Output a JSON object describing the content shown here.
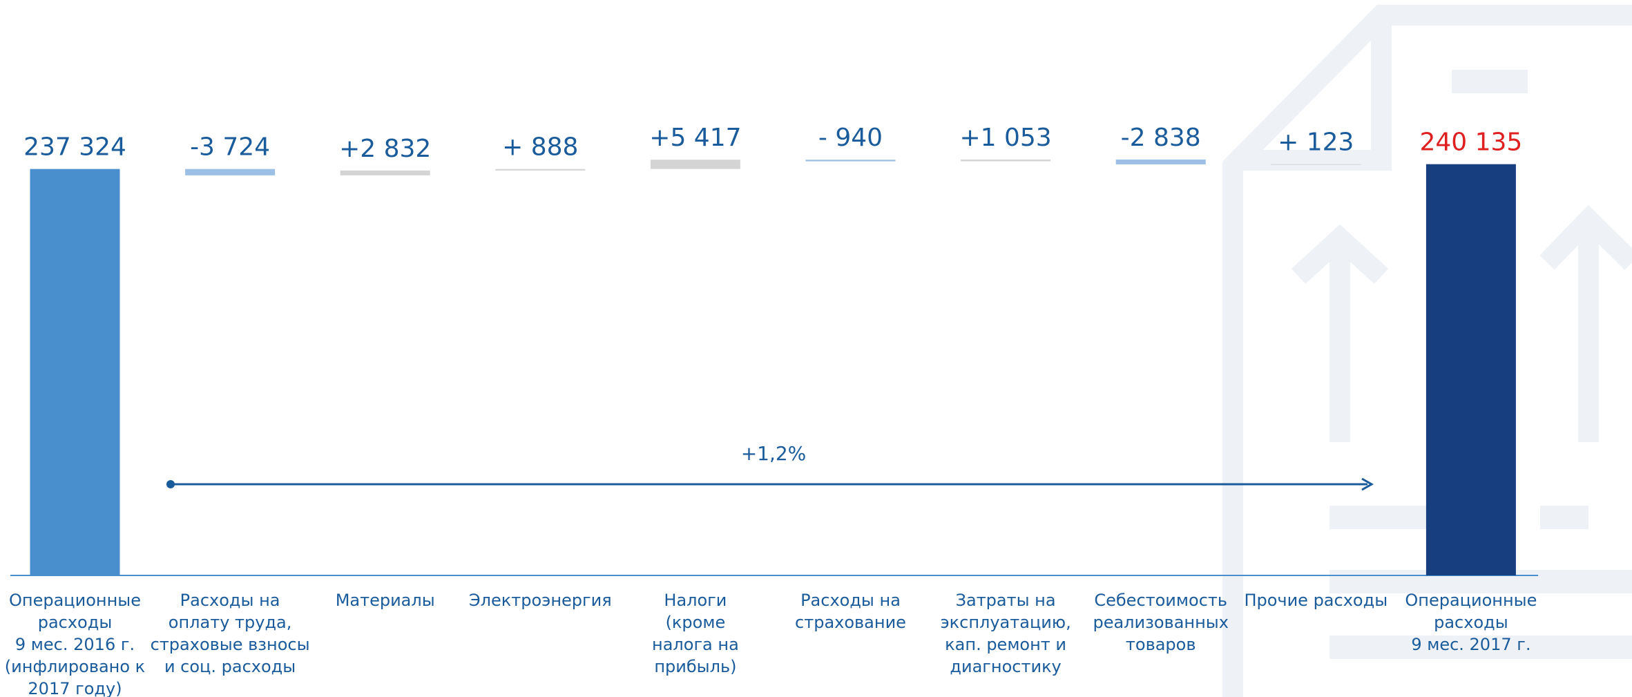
{
  "chart_data": {
    "type": "waterfall",
    "categories": [
      [
        "Операционные",
        "расходы",
        "9 мес. 2016 г.",
        "(инфлировано к",
        "2017 году)"
      ],
      [
        "Расходы на",
        "оплату труда,",
        "страховые взносы",
        "и соц. расходы"
      ],
      [
        "Материалы"
      ],
      [
        "Электроэнергия"
      ],
      [
        "Налоги",
        "(кроме",
        "налога на",
        "прибыль)"
      ],
      [
        "Расходы на",
        "страхование"
      ],
      [
        "Затраты на",
        "эксплуатацию,",
        "кап. ремонт и",
        "диагностику"
      ],
      [
        "Себестоимость",
        "реализованных",
        "товаров"
      ],
      [
        "Прочие расходы"
      ],
      [
        "Операционные",
        "расходы",
        "9 мес. 2017 г."
      ]
    ],
    "values": [
      237324,
      -3724,
      2832,
      888,
      5417,
      -940,
      1053,
      -2838,
      123,
      240135
    ],
    "value_labels": [
      "237 324",
      "-3 724",
      "+2 832",
      "+ 888",
      "+5 417",
      "- 940",
      "+1 053",
      "-2 838",
      "+ 123",
      "240 135"
    ],
    "colors": [
      "#4a8fcd",
      "#9dbfe6",
      "#d4d4d4",
      "#d4d4d4",
      "#d4d4d4",
      "#9dbfe6",
      "#d4d4d4",
      "#9dbfe6",
      "#d4d4d4",
      "#173f80"
    ],
    "label_colors": [
      "#1a5b9c",
      "#1a5b9c",
      "#1a5b9c",
      "#1a5b9c",
      "#1a5b9c",
      "#1a5b9c",
      "#1a5b9c",
      "#1a5b9c",
      "#1a5b9c",
      "#e02020"
    ],
    "ylim": [
      0,
      336000
    ],
    "annotation": "+1,2%"
  }
}
